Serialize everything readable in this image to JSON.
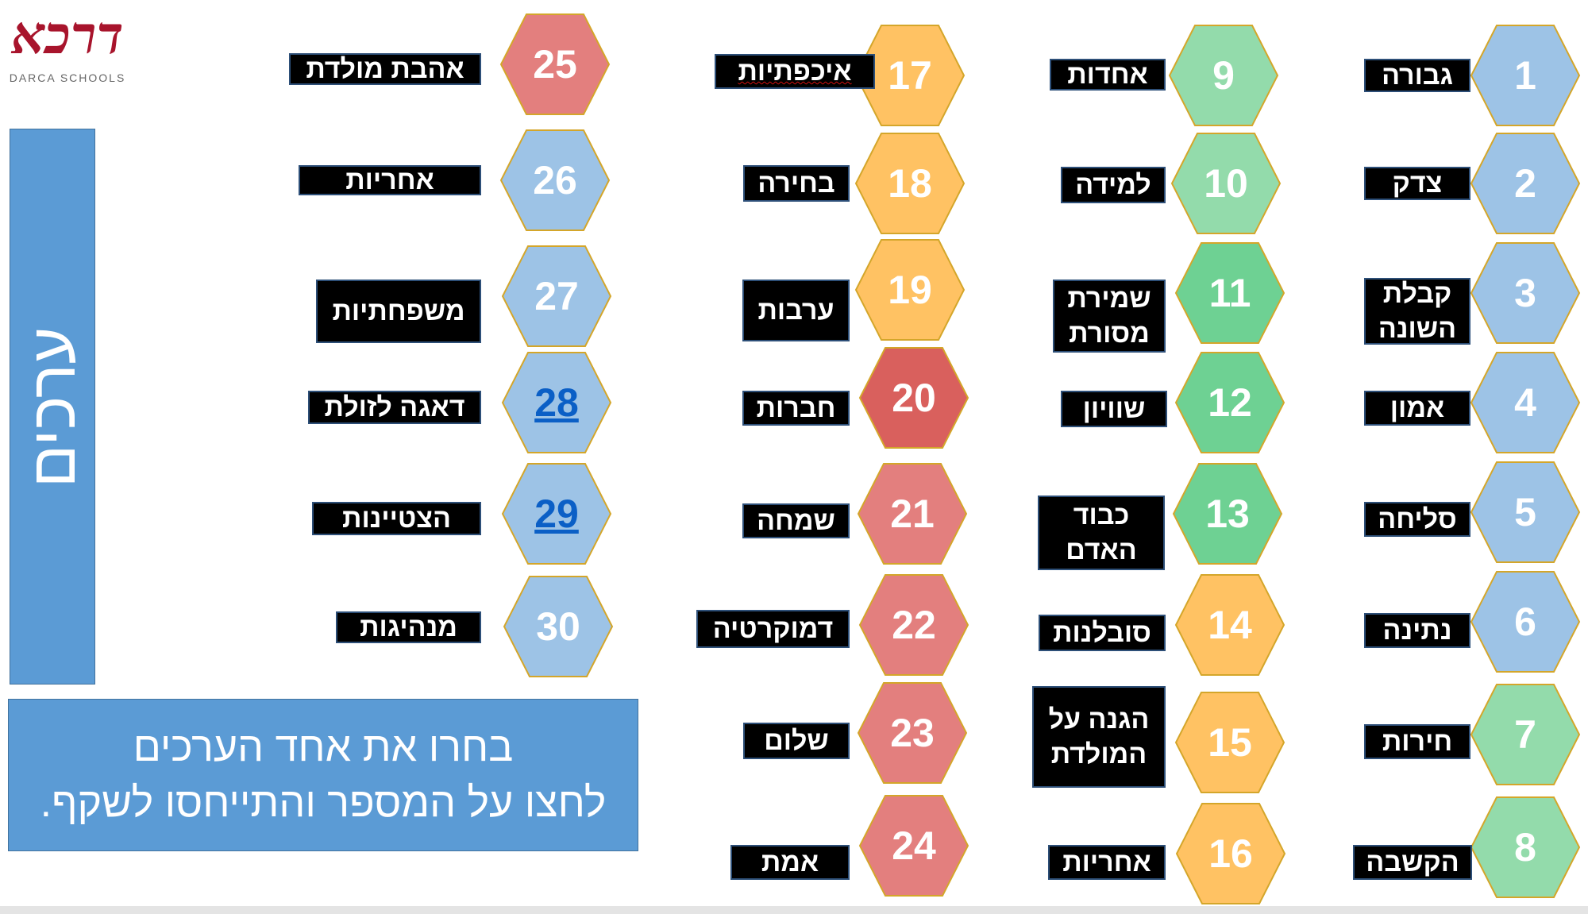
{
  "logo": {
    "main": "דרכא",
    "sub": "DARCA SCHOOLS"
  },
  "side_title": "ערכים",
  "instructions": {
    "line1": "בחרו את אחד הערכים",
    "line2": "לחצו על המספר והתייחסו לשקף."
  },
  "colors": {
    "blue": "#9dc3e6",
    "light_green": "#93dbab",
    "green": "#6ed193",
    "orange": "#ffc263",
    "pink": "#e37f7e",
    "red": "#d9605d",
    "outline": "#d4a62a",
    "panel": "#5b9bd5",
    "link": "#0b5fc6"
  },
  "values": [
    {
      "number": "1",
      "label": "גבורה",
      "color": "blue"
    },
    {
      "number": "2",
      "label": "צדק",
      "color": "blue"
    },
    {
      "number": "3",
      "label": "קבלת השונה",
      "label_lines": [
        "קבלת",
        "השונה"
      ],
      "color": "blue"
    },
    {
      "number": "4",
      "label": "אמון",
      "color": "blue"
    },
    {
      "number": "5",
      "label": "סליחה",
      "color": "blue"
    },
    {
      "number": "6",
      "label": "נתינה",
      "color": "blue"
    },
    {
      "number": "7",
      "label": "חירות",
      "color": "light_green"
    },
    {
      "number": "8",
      "label": "הקשבה",
      "color": "light_green"
    },
    {
      "number": "9",
      "label": "אחדות",
      "color": "light_green"
    },
    {
      "number": "10",
      "label": "למידה",
      "color": "light_green"
    },
    {
      "number": "11",
      "label": "שמירת מסורת",
      "label_lines": [
        "שמירת",
        "מסורת"
      ],
      "color": "green"
    },
    {
      "number": "12",
      "label": "שוויון",
      "color": "green"
    },
    {
      "number": "13",
      "label": "כבוד האדם",
      "label_lines": [
        "כבוד",
        "האדם"
      ],
      "color": "green"
    },
    {
      "number": "14",
      "label": "סובלנות",
      "color": "orange"
    },
    {
      "number": "15",
      "label": "הגנה על המולדת",
      "label_lines": [
        "הגנה על",
        "המולדת"
      ],
      "color": "orange"
    },
    {
      "number": "16",
      "label": "אחריות",
      "color": "orange"
    },
    {
      "number": "17",
      "label": "איכפתיות",
      "color": "orange"
    },
    {
      "number": "18",
      "label": "בחירה",
      "color": "orange"
    },
    {
      "number": "19",
      "label": "ערבות",
      "color": "orange"
    },
    {
      "number": "20",
      "label": "חברות",
      "color": "red"
    },
    {
      "number": "21",
      "label": "שמחה",
      "color": "pink"
    },
    {
      "number": "22",
      "label": "דמוקרטיה",
      "color": "pink"
    },
    {
      "number": "23",
      "label": "שלום",
      "color": "pink"
    },
    {
      "number": "24",
      "label": "אמת",
      "color": "pink"
    },
    {
      "number": "25",
      "label": "אהבת מולדת",
      "color": "pink"
    },
    {
      "number": "26",
      "label": "אחריות",
      "color": "blue"
    },
    {
      "number": "27",
      "label": "משפחתיות",
      "color": "blue"
    },
    {
      "number": "28",
      "label": "דאגה לזולת",
      "color": "blue",
      "link": true
    },
    {
      "number": "29",
      "label": "הצטיינות",
      "color": "blue",
      "link": true
    },
    {
      "number": "30",
      "label": "מנהיגות",
      "color": "blue"
    }
  ]
}
